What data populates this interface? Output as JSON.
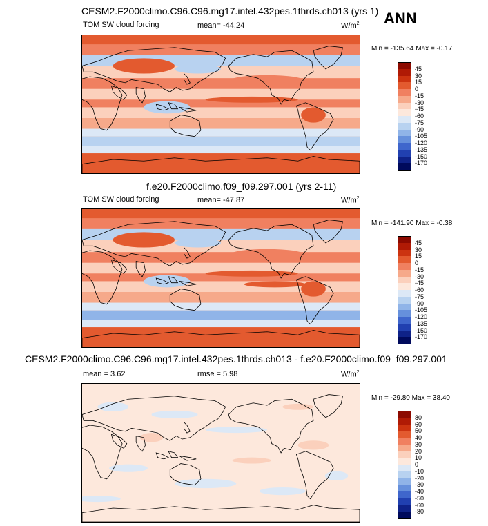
{
  "season": "ANN",
  "units_base": "W/m",
  "units_exp": "2",
  "panels": [
    {
      "title": "CESM2.F2000climo.C96.C96.mg17.intel.432pes.1thrds.ch013 (yrs 1)",
      "left_label": "TOM SW cloud forcing",
      "stat_text": "mean= -44.24",
      "stat2_text": "",
      "minmax": "Min = -135.64 Max =  -0.17",
      "cbar_labels": [
        "45",
        "30",
        "15",
        "0",
        "-15",
        "-30",
        "-45",
        "-60",
        "-75",
        "-90",
        "-105",
        "-120",
        "-135",
        "-150",
        "-170"
      ],
      "cbar_colors": [
        "#8c0a00",
        "#b01a05",
        "#cc3310",
        "#e35a2f",
        "#f08060",
        "#f6a98a",
        "#fbd0bc",
        "#fde8dc",
        "#dce8f6",
        "#b8d2f0",
        "#90b4e8",
        "#6690dc",
        "#3f66cc",
        "#2140b0",
        "#0f2288",
        "#000a5c"
      ]
    },
    {
      "title": "f.e20.F2000climo.f09_f09.297.001 (yrs 2-11)",
      "left_label": "TOM SW cloud forcing",
      "stat_text": "mean= -47.87",
      "stat2_text": "",
      "minmax": "Min = -141.90 Max =  -0.38",
      "cbar_labels": [
        "45",
        "30",
        "15",
        "0",
        "-15",
        "-30",
        "-45",
        "-60",
        "-75",
        "-90",
        "-105",
        "-120",
        "-135",
        "-150",
        "-170"
      ],
      "cbar_colors": [
        "#8c0a00",
        "#b01a05",
        "#cc3310",
        "#e35a2f",
        "#f08060",
        "#f6a98a",
        "#fbd0bc",
        "#fde8dc",
        "#dce8f6",
        "#b8d2f0",
        "#90b4e8",
        "#6690dc",
        "#3f66cc",
        "#2140b0",
        "#0f2288",
        "#000a5c"
      ]
    },
    {
      "title": "CESM2.F2000climo.C96.C96.mg17.intel.432pes.1thrds.ch013 - f.e20.F2000climo.f09_f09.297.001",
      "left_label": "mean =   3.62",
      "stat_text": "rmse =   5.98",
      "stat2_text": "",
      "minmax": "Min = -29.80 Max =  38.40",
      "cbar_labels": [
        "80",
        "60",
        "50",
        "40",
        "30",
        "20",
        "10",
        "0",
        "-10",
        "-20",
        "-30",
        "-40",
        "-50",
        "-60",
        "-80"
      ],
      "cbar_colors": [
        "#8c0a00",
        "#b01a05",
        "#cc3310",
        "#e35a2f",
        "#f08060",
        "#f6a98a",
        "#fbd0bc",
        "#fde8dc",
        "#dce8f6",
        "#b8d2f0",
        "#90b4e8",
        "#6690dc",
        "#3f66cc",
        "#2140b0",
        "#0f2288",
        "#000a5c"
      ]
    }
  ],
  "chart_data": [
    {
      "type": "heatmap",
      "title": "CESM2.F2000climo.C96.C96.mg17.intel.432pes.1thrds.ch013 (yrs 1)",
      "variable": "TOM SW cloud forcing",
      "mean": -44.24,
      "min": -135.64,
      "max": -0.17,
      "units": "W/m2",
      "levels": [
        45,
        30,
        15,
        0,
        -15,
        -30,
        -45,
        -60,
        -75,
        -90,
        -105,
        -120,
        -135,
        -150,
        -170
      ]
    },
    {
      "type": "heatmap",
      "title": "f.e20.F2000climo.f09_f09.297.001 (yrs 2-11)",
      "variable": "TOM SW cloud forcing",
      "mean": -47.87,
      "min": -141.9,
      "max": -0.38,
      "units": "W/m2",
      "levels": [
        45,
        30,
        15,
        0,
        -15,
        -30,
        -45,
        -60,
        -75,
        -90,
        -105,
        -120,
        -135,
        -150,
        -170
      ]
    },
    {
      "type": "heatmap",
      "title": "CESM2.F2000climo.C96.C96.mg17.intel.432pes.1thrds.ch013 - f.e20.F2000climo.f09_f09.297.001",
      "mean": 3.62,
      "rmse": 5.98,
      "min": -29.8,
      "max": 38.4,
      "units": "W/m2",
      "levels": [
        80,
        60,
        50,
        40,
        30,
        20,
        10,
        0,
        -10,
        -20,
        -30,
        -40,
        -50,
        -60,
        -80
      ]
    }
  ]
}
